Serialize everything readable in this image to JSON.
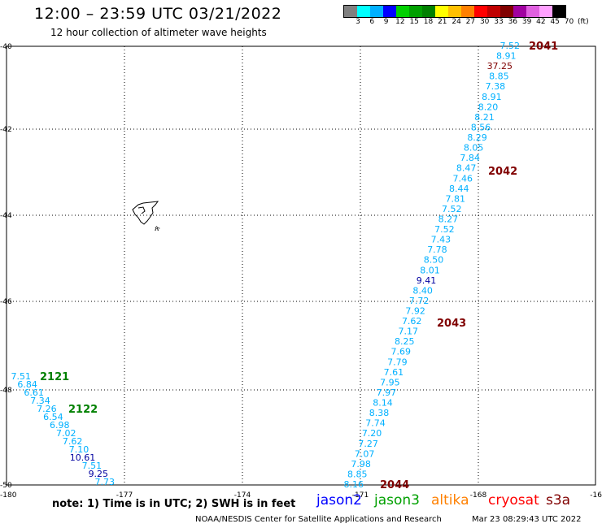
{
  "title": "12:00 – 23:59 UTC 03/21/2022",
  "subtitle": "12 hour collection of altimeter wave heights",
  "colorbar": {
    "colors": [
      "#808080",
      "#00ffff",
      "#00b0ff",
      "#0000ff",
      "#00d000",
      "#00a000",
      "#008000",
      "#ffff00",
      "#ffc000",
      "#ff8000",
      "#ff0000",
      "#c00000",
      "#800000",
      "#a000a0",
      "#e060e0",
      "#ffa0ff",
      "#000000"
    ],
    "labels": [
      "3",
      "6",
      "9",
      "12",
      "15",
      "18",
      "21",
      "24",
      "27",
      "30",
      "33",
      "36",
      "39",
      "42",
      "45",
      "70",
      "(ft)"
    ]
  },
  "axes": {
    "lat_labels": [
      "-40",
      "-42",
      "-44",
      "-46",
      "-48",
      "-50"
    ],
    "lon_labels": [
      "-180",
      "-177",
      "-174",
      "-171",
      "-168",
      "-16"
    ]
  },
  "island_label": "ጵ",
  "passes": [
    {
      "id": "2041",
      "color": "#800000"
    },
    {
      "id": "2042",
      "color": "#800000"
    },
    {
      "id": "2043",
      "color": "#800000"
    },
    {
      "id": "2044",
      "color": "#800000"
    },
    {
      "id": "2121",
      "color": "#008000"
    },
    {
      "id": "2122",
      "color": "#008000"
    }
  ],
  "track_a": [
    {
      "v": "7.52",
      "c": "#00b0ff"
    },
    {
      "v": "8.91",
      "c": "#00b0ff"
    },
    {
      "v": "37.25",
      "c": "#800000"
    },
    {
      "v": "8.85",
      "c": "#00b0ff"
    },
    {
      "v": "7.38",
      "c": "#00b0ff"
    },
    {
      "v": "8.91",
      "c": "#00b0ff"
    },
    {
      "v": "8.20",
      "c": "#00b0ff"
    },
    {
      "v": "8.21",
      "c": "#00b0ff"
    },
    {
      "v": "8.56",
      "c": "#00b0ff"
    },
    {
      "v": "8.29",
      "c": "#00b0ff"
    },
    {
      "v": "8.05",
      "c": "#00b0ff"
    },
    {
      "v": "7.84",
      "c": "#00b0ff"
    },
    {
      "v": "8.47",
      "c": "#00b0ff"
    },
    {
      "v": "7.46",
      "c": "#00b0ff"
    },
    {
      "v": "8.44",
      "c": "#00b0ff"
    },
    {
      "v": "7.81",
      "c": "#00b0ff"
    },
    {
      "v": "7.52",
      "c": "#00b0ff"
    },
    {
      "v": "8.27",
      "c": "#00b0ff"
    },
    {
      "v": "7.52",
      "c": "#00b0ff"
    },
    {
      "v": "7.43",
      "c": "#00b0ff"
    },
    {
      "v": "7.78",
      "c": "#00b0ff"
    },
    {
      "v": "8.50",
      "c": "#00b0ff"
    },
    {
      "v": "8.01",
      "c": "#00b0ff"
    },
    {
      "v": "9.41",
      "c": "#0000a0"
    },
    {
      "v": "8.40",
      "c": "#00b0ff"
    },
    {
      "v": "7.72",
      "c": "#00b0ff"
    },
    {
      "v": "7.92",
      "c": "#00b0ff"
    },
    {
      "v": "7.62",
      "c": "#00b0ff"
    },
    {
      "v": "7.17",
      "c": "#00b0ff"
    },
    {
      "v": "8.25",
      "c": "#00b0ff"
    },
    {
      "v": "7.69",
      "c": "#00b0ff"
    },
    {
      "v": "7.79",
      "c": "#00b0ff"
    },
    {
      "v": "7.61",
      "c": "#00b0ff"
    },
    {
      "v": "7.95",
      "c": "#00b0ff"
    },
    {
      "v": "7.97",
      "c": "#00b0ff"
    },
    {
      "v": "8.14",
      "c": "#00b0ff"
    },
    {
      "v": "8.38",
      "c": "#00b0ff"
    },
    {
      "v": "7.74",
      "c": "#00b0ff"
    },
    {
      "v": "7.20",
      "c": "#00b0ff"
    },
    {
      "v": "7.27",
      "c": "#00b0ff"
    },
    {
      "v": "7.07",
      "c": "#00b0ff"
    },
    {
      "v": "7.98",
      "c": "#00b0ff"
    },
    {
      "v": "8.85",
      "c": "#00b0ff"
    },
    {
      "v": "8.16",
      "c": "#00b0ff"
    }
  ],
  "track_b": [
    {
      "v": "7.51",
      "c": "#00b0ff"
    },
    {
      "v": "6.84",
      "c": "#00b0ff"
    },
    {
      "v": "6.61",
      "c": "#00b0ff"
    },
    {
      "v": "7.34",
      "c": "#00b0ff"
    },
    {
      "v": "7.26",
      "c": "#00b0ff"
    },
    {
      "v": "6.54",
      "c": "#00b0ff"
    },
    {
      "v": "6.98",
      "c": "#00b0ff"
    },
    {
      "v": "7.02",
      "c": "#00b0ff"
    },
    {
      "v": "7.62",
      "c": "#00b0ff"
    },
    {
      "v": "7.10",
      "c": "#00b0ff"
    },
    {
      "v": "10.61",
      "c": "#0000a0"
    },
    {
      "v": "7.51",
      "c": "#00b0ff"
    },
    {
      "v": "9.25",
      "c": "#0000a0"
    },
    {
      "v": "7.73",
      "c": "#00b0ff"
    }
  ],
  "note": "note:  1) Time is in UTC;  2) SWH is in feet",
  "satellites": [
    {
      "name": "jason2",
      "color": "#0000ff"
    },
    {
      "name": "jason3",
      "color": "#00a000"
    },
    {
      "name": "altika",
      "color": "#ff8000"
    },
    {
      "name": "cryosat",
      "color": "#ff0000"
    },
    {
      "name": "s3a",
      "color": "#800000"
    }
  ],
  "footer": {
    "left": "NOAA/NESDIS Center for Satellite Applications and Research",
    "right": "Mar 23 08:29:43 UTC 2022"
  }
}
